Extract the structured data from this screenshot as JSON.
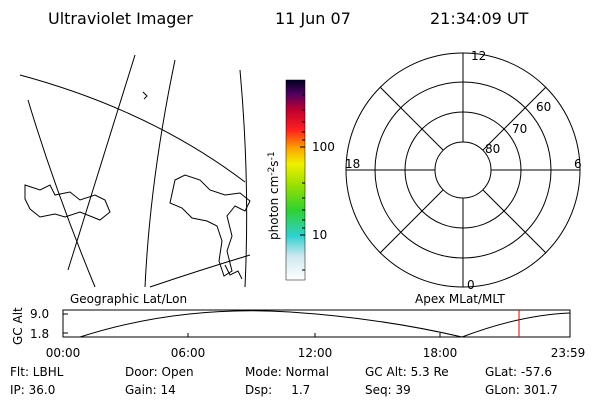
{
  "header": {
    "title": "Ultraviolet Imager",
    "date": "11 Jun 07",
    "time": "21:34:09 UT"
  },
  "colorbar": {
    "label_parts": [
      "photon cm",
      "-2",
      "s",
      "-1"
    ],
    "ticks": [
      "100",
      "10"
    ]
  },
  "polar": {
    "mlt_labels": [
      "12",
      "18",
      "6",
      "0"
    ],
    "lat_labels": [
      "60",
      "70",
      "80"
    ]
  },
  "panel_labels": {
    "left": "Geographic Lat/Lon",
    "right": "Apex MLat/MLT"
  },
  "altitude": {
    "axis_label": "GC Alt",
    "yticks": [
      "9.0",
      "1.8"
    ],
    "xticks": [
      "00:00",
      "06:00",
      "12:00",
      "18:00",
      "23:59"
    ]
  },
  "info": [
    [
      "Flt: LBHL",
      "Door: Open",
      "Mode: Normal",
      "GC Alt: 5.3 Re",
      "GLat: -57.6"
    ],
    [
      "IP: 36.0",
      "Gain: 14",
      "Dsp:     1.7",
      "Seq: 39",
      "GLon: 301.7"
    ]
  ]
}
